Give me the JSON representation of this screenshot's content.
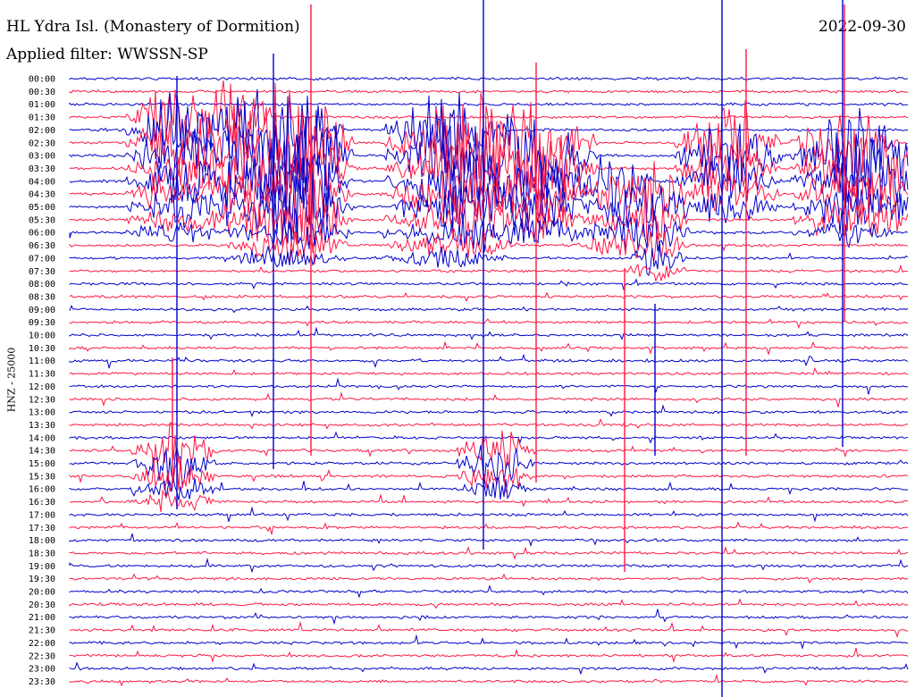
{
  "header": {
    "title": "HL Ydra Isl. (Monastery of Dormition)",
    "date": "2022-09-30",
    "filter_line": "Applied filter: WWSSN-SP"
  },
  "chart_data": {
    "type": "line",
    "kind": "helicorder",
    "ylabel": "HNZ - 25000",
    "tick_labels": [
      "00:00",
      "00:30",
      "01:00",
      "01:30",
      "02:00",
      "02:30",
      "03:00",
      "03:30",
      "04:00",
      "04:30",
      "05:00",
      "05:30",
      "06:00",
      "06:30",
      "07:00",
      "07:30",
      "08:00",
      "08:30",
      "09:00",
      "09:30",
      "10:00",
      "10:30",
      "11:00",
      "11:30",
      "12:00",
      "12:30",
      "13:00",
      "13:30",
      "14:00",
      "14:30",
      "15:00",
      "15:30",
      "16:00",
      "16:30",
      "17:00",
      "17:30",
      "18:00",
      "18:30",
      "19:00",
      "19:30",
      "20:00",
      "20:30",
      "21:00",
      "21:30",
      "22:00",
      "22:30",
      "23:00",
      "23:30"
    ],
    "trace_minutes": 30,
    "colors": [
      "#0000cc",
      "#ff1744"
    ],
    "grid": false
  }
}
